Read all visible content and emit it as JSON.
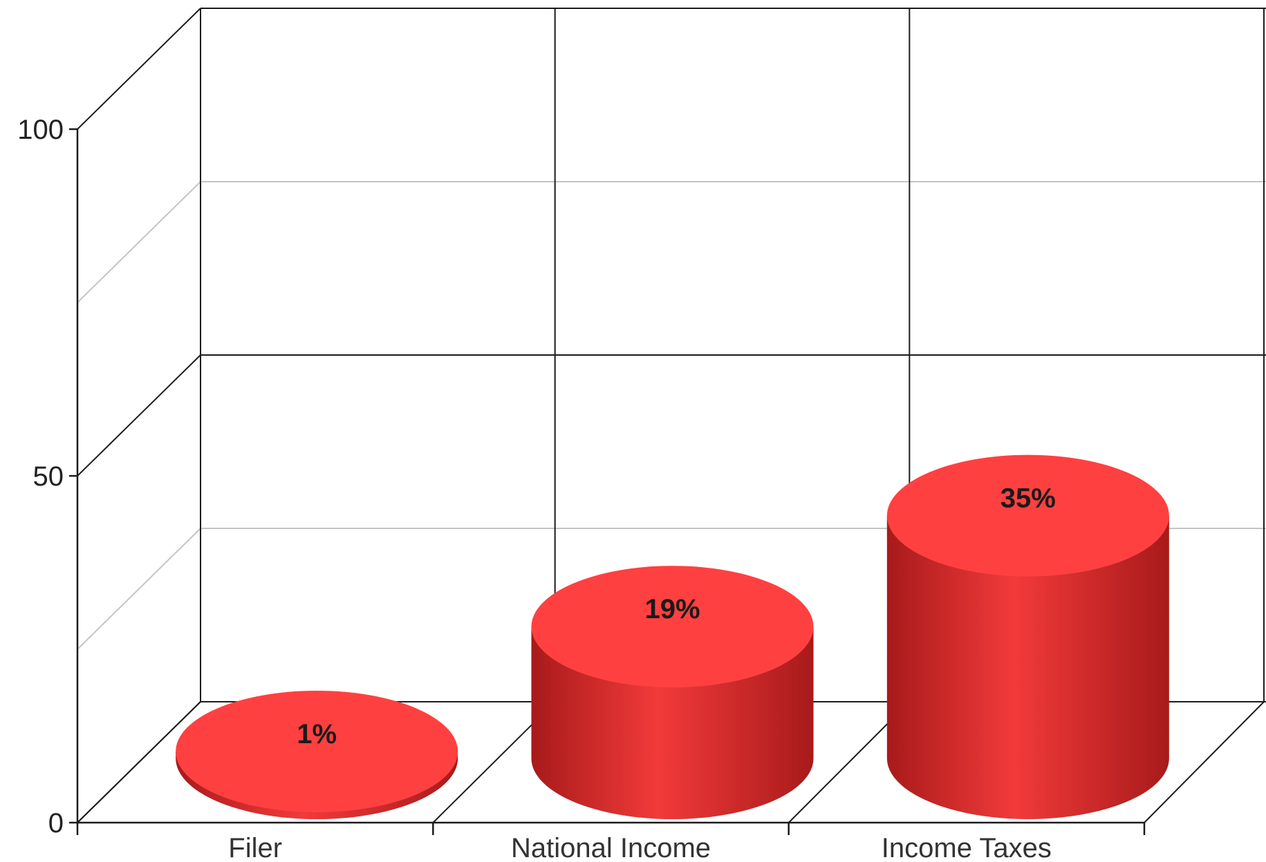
{
  "chart_data": {
    "type": "bar",
    "style": "3d-cylinder",
    "categories": [
      "Filer",
      "National Income",
      "Income Taxes"
    ],
    "values": [
      1,
      19,
      35
    ],
    "data_labels": [
      "1%",
      "19%",
      "35%"
    ],
    "ylim": [
      0,
      100
    ],
    "y_ticks": [
      0,
      50,
      100
    ],
    "y_tick_labels": [
      "0",
      "50",
      "100"
    ],
    "grid": true,
    "legend": "none",
    "colors": {
      "bar_top": "#ff4040",
      "bar_side_light": "#f23a3a",
      "bar_side_dark": "#a81a1a",
      "grid_major": "#1a1a1a",
      "grid_minor": "#c4c4c4"
    }
  }
}
